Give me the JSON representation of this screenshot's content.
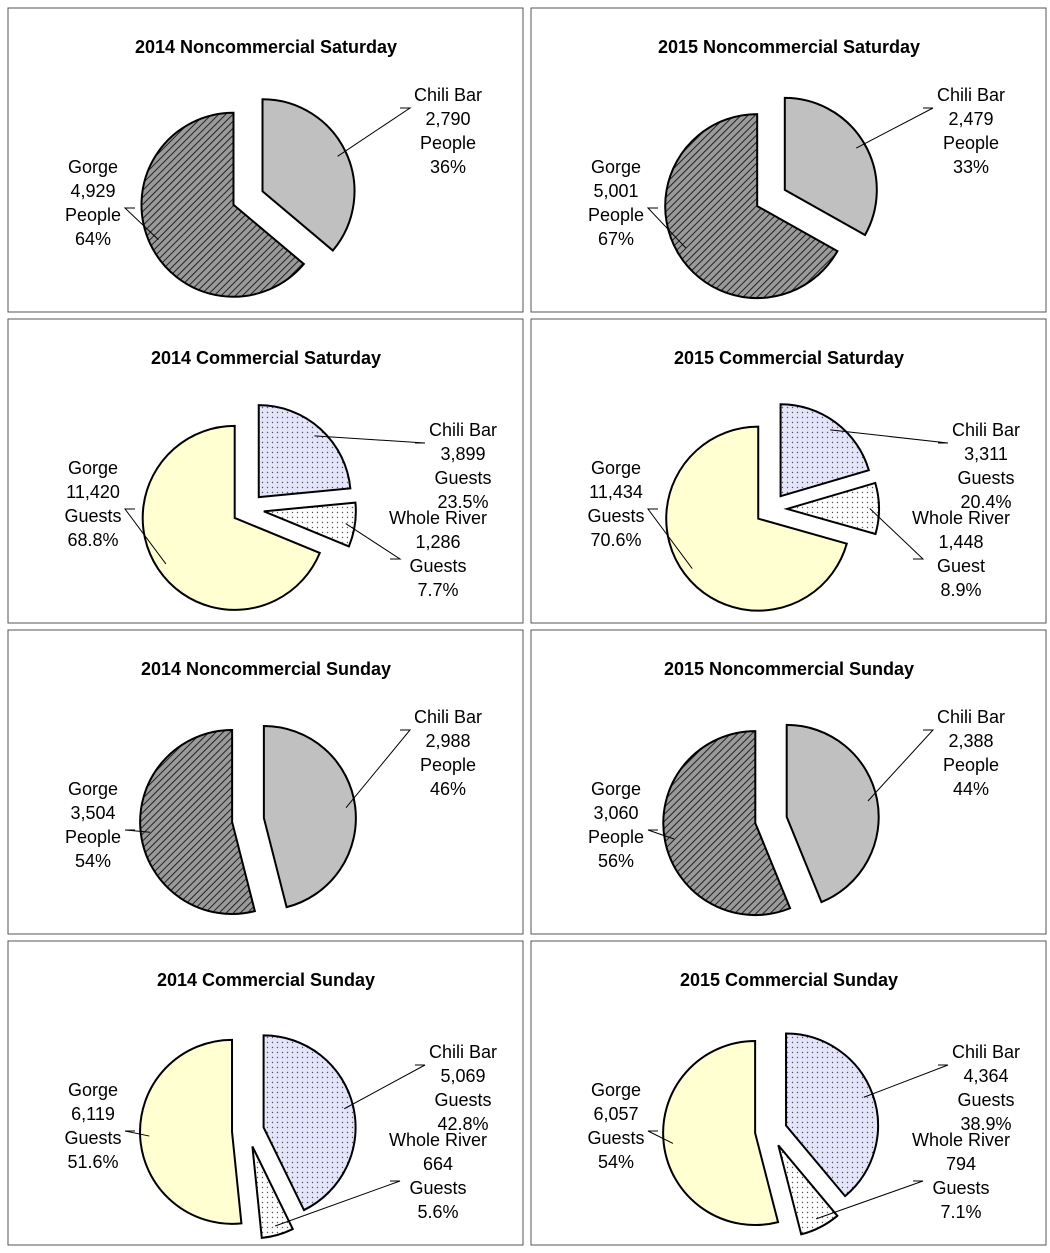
{
  "chart_data": [
    {
      "type": "pie",
      "title": "2014 Noncommercial Saturday",
      "categories": [
        "Chili Bar",
        "Gorge"
      ],
      "values": [
        2790,
        4929
      ],
      "value_labels": [
        "2,790",
        "4,929"
      ],
      "units": [
        "People",
        "People"
      ],
      "percents": [
        36,
        64
      ],
      "percent_labels": [
        "36%",
        "64%"
      ],
      "colors": [
        "#c0c0c0",
        "#9a9a9a"
      ],
      "patterns": [
        "solid",
        "diagonal"
      ]
    },
    {
      "type": "pie",
      "title": "2015 Noncommercial Saturday",
      "categories": [
        "Chili Bar",
        "Gorge"
      ],
      "values": [
        2479,
        5001
      ],
      "value_labels": [
        "2,479",
        "5,001"
      ],
      "units": [
        "People",
        "People"
      ],
      "percents": [
        33,
        67
      ],
      "percent_labels": [
        "33%",
        "67%"
      ],
      "colors": [
        "#c0c0c0",
        "#9a9a9a"
      ],
      "patterns": [
        "solid",
        "diagonal"
      ]
    },
    {
      "type": "pie",
      "title": "2014 Commercial Saturday",
      "categories": [
        "Chili Bar",
        "Whole River",
        "Gorge"
      ],
      "values": [
        3899,
        1286,
        11420
      ],
      "value_labels": [
        "3,899",
        "1,286",
        "11,420"
      ],
      "units": [
        "Guests",
        "Guests",
        "Guests"
      ],
      "percents": [
        23.5,
        7.7,
        68.8
      ],
      "percent_labels": [
        "23.5%",
        "7.7%",
        "68.8%"
      ],
      "colors": [
        "#e4e4fb",
        "#ffffff",
        "#ffffd2"
      ],
      "patterns": [
        "dots",
        "dots",
        "solid"
      ]
    },
    {
      "type": "pie",
      "title": "2015 Commercial Saturday",
      "categories": [
        "Chili Bar",
        "Whole River",
        "Gorge"
      ],
      "values": [
        3311,
        1448,
        11434
      ],
      "value_labels": [
        "3,311",
        "1,448",
        "11,434"
      ],
      "units": [
        "Guests",
        "Guest",
        "Guests"
      ],
      "percents": [
        20.4,
        8.9,
        70.6
      ],
      "percent_labels": [
        "20.4%",
        "8.9%",
        "70.6%"
      ],
      "colors": [
        "#e4e4fb",
        "#ffffff",
        "#ffffd2"
      ],
      "patterns": [
        "dots",
        "dots",
        "solid"
      ]
    },
    {
      "type": "pie",
      "title": "2014 Noncommercial Sunday",
      "categories": [
        "Chili Bar",
        "Gorge"
      ],
      "values": [
        2988,
        3504
      ],
      "value_labels": [
        "2,988",
        "3,504"
      ],
      "units": [
        "People",
        "People"
      ],
      "percents": [
        46,
        54
      ],
      "percent_labels": [
        "46%",
        "54%"
      ],
      "colors": [
        "#c0c0c0",
        "#9a9a9a"
      ],
      "patterns": [
        "solid",
        "diagonal"
      ]
    },
    {
      "type": "pie",
      "title": "2015 Noncommercial Sunday",
      "categories": [
        "Chili Bar",
        "Gorge"
      ],
      "values": [
        2388,
        3060
      ],
      "value_labels": [
        "2,388",
        "3,060"
      ],
      "units": [
        "People",
        "People"
      ],
      "percents": [
        44,
        56
      ],
      "percent_labels": [
        "44%",
        "56%"
      ],
      "colors": [
        "#c0c0c0",
        "#9a9a9a"
      ],
      "patterns": [
        "solid",
        "diagonal"
      ]
    },
    {
      "type": "pie",
      "title": "2014 Commercial Sunday",
      "categories": [
        "Chili Bar",
        "Whole River",
        "Gorge"
      ],
      "values": [
        5069,
        664,
        6119
      ],
      "value_labels": [
        "5,069",
        "664",
        "6,119"
      ],
      "units": [
        "Guests",
        "Guests",
        "Guests"
      ],
      "percents": [
        42.8,
        5.6,
        51.6
      ],
      "percent_labels": [
        "42.8%",
        "5.6%",
        "51.6%"
      ],
      "colors": [
        "#e4e4fb",
        "#ffffff",
        "#ffffd2"
      ],
      "patterns": [
        "dots",
        "dots",
        "solid"
      ]
    },
    {
      "type": "pie",
      "title": "2015 Commercial Sunday",
      "categories": [
        "Chili Bar",
        "Whole River",
        "Gorge"
      ],
      "values": [
        4364,
        794,
        6057
      ],
      "value_labels": [
        "4,364",
        "794",
        "6,057"
      ],
      "units": [
        "Guests",
        "Guests",
        "Guests"
      ],
      "percents": [
        38.9,
        7.1,
        54
      ],
      "percent_labels": [
        "38.9%",
        "7.1%",
        "54%"
      ],
      "colors": [
        "#e4e4fb",
        "#ffffff",
        "#ffffd2"
      ],
      "patterns": [
        "dots",
        "dots",
        "solid"
      ]
    }
  ]
}
